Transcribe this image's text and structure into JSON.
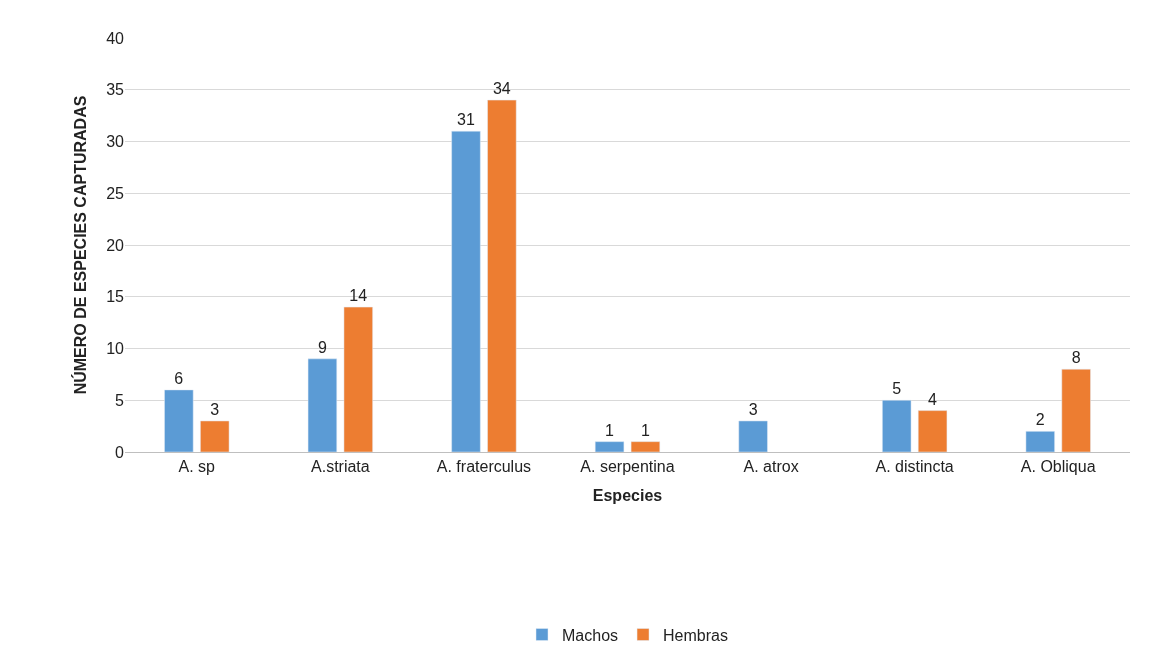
{
  "chart_data": {
    "type": "bar",
    "xlabel": "Especies",
    "ylabel": "NÚMERO DE ESPECIES CAPTURADAS",
    "categories": [
      "A. sp",
      "A.striata",
      "A. fraterculus",
      "A. serpentina",
      "A. atrox",
      "A. distincta",
      "A. Obliqua"
    ],
    "series": [
      {
        "name": "Machos",
        "color": "#5b9bd5",
        "values": [
          6,
          9,
          31,
          1,
          3,
          5,
          2
        ]
      },
      {
        "name": "Hembras",
        "color": "#ed7d31",
        "values": [
          3,
          14,
          34,
          1,
          null,
          4,
          8
        ]
      }
    ],
    "ylim": [
      0,
      40
    ],
    "yticks": [
      0,
      5,
      10,
      15,
      20,
      25,
      30,
      35,
      40
    ],
    "grid": "y",
    "legend": "bottom",
    "data_labels": true
  }
}
